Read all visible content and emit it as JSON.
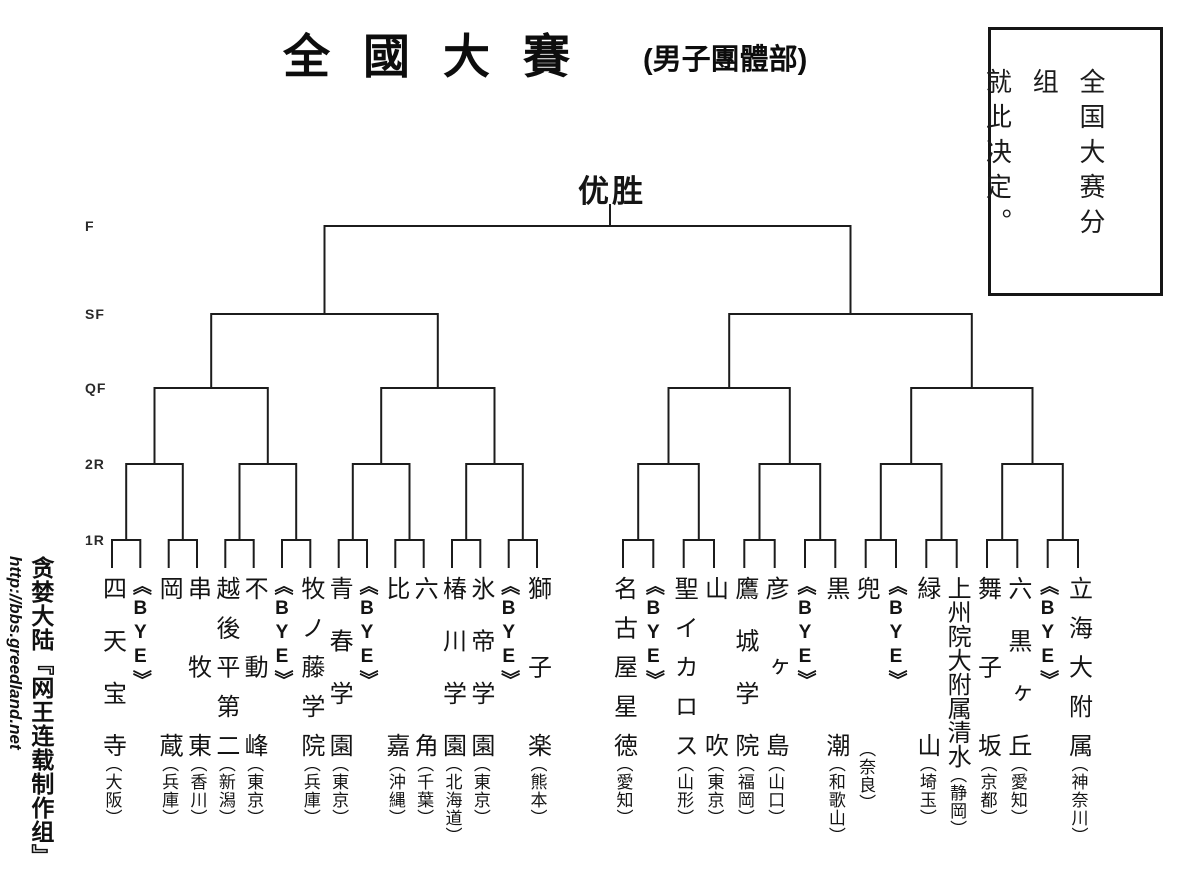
{
  "title": {
    "main": "全國大賽",
    "division": "(男子團體部)"
  },
  "champion_label": "优胜",
  "round_labels": [
    "F",
    "SF",
    "QF",
    "2R",
    "1R"
  ],
  "note_box": {
    "lines": [
      "全国大赛分组",
      "就此决定。"
    ]
  },
  "watermark": {
    "group": "贪婪大陆『网王连载制作组』",
    "url": "http://bbs.greedland.net"
  },
  "colors": {
    "line": "#1c1c1c",
    "text": "#151515",
    "background": "#ffffff"
  },
  "bracket": {
    "teams": [
      {
        "slot": 1,
        "name": "四天宝寺",
        "region": "（大阪）"
      },
      {
        "slot": 2,
        "name": "《BYE》",
        "bye": true
      },
      {
        "slot": 3,
        "name": "岡蔵",
        "region": "（兵庫）"
      },
      {
        "slot": 4,
        "name": "串牧東",
        "region": "（香川）"
      },
      {
        "slot": 5,
        "name": "越後平第二",
        "region": "（新潟）"
      },
      {
        "slot": 6,
        "name": "不動峰",
        "region": "（東京）"
      },
      {
        "slot": 7,
        "name": "《BYE》",
        "bye": true
      },
      {
        "slot": 8,
        "name": "牧ノ藤学院",
        "region": "（兵庫）"
      },
      {
        "slot": 9,
        "name": "青春学園",
        "region": "（東京）"
      },
      {
        "slot": 10,
        "name": "《BYE》",
        "bye": true
      },
      {
        "slot": 11,
        "name": "比嘉",
        "region": "（沖縄）"
      },
      {
        "slot": 12,
        "name": "六角",
        "region": "（千葉）"
      },
      {
        "slot": 13,
        "name": "椿川学園",
        "region": "（北海道）"
      },
      {
        "slot": 14,
        "name": "氷帝学園",
        "region": "（東京）"
      },
      {
        "slot": 15,
        "name": "《BYE》",
        "bye": true
      },
      {
        "slot": 16,
        "name": "獅子楽",
        "region": "（熊本）"
      },
      {
        "slot": 17,
        "name": "名古屋星徳",
        "region": "（愛知）"
      },
      {
        "slot": 18,
        "name": "《BYE》",
        "bye": true
      },
      {
        "slot": 19,
        "name": "聖イカロス",
        "region": "（山形）"
      },
      {
        "slot": 20,
        "name": "山吹",
        "region": "（東京）"
      },
      {
        "slot": 21,
        "name": "鷹城学院",
        "region": "（福岡）"
      },
      {
        "slot": 22,
        "name": "彦ヶ島",
        "region": "（山口）"
      },
      {
        "slot": 23,
        "name": "《BYE》",
        "bye": true
      },
      {
        "slot": 24,
        "name": "黒潮",
        "region": "（和歌山）"
      },
      {
        "slot": 25,
        "name": "兜",
        "region": "（奈良）"
      },
      {
        "slot": 26,
        "name": "《BYE》",
        "bye": true
      },
      {
        "slot": 27,
        "name": "緑山",
        "region": "（埼玉）"
      },
      {
        "slot": 28,
        "name": "上州院大附属清水",
        "region": "（静岡）"
      },
      {
        "slot": 29,
        "name": "舞子坂",
        "region": "（京都）"
      },
      {
        "slot": 30,
        "name": "六黒ヶ丘",
        "region": "（愛知）"
      },
      {
        "slot": 31,
        "name": "《BYE》",
        "bye": true
      },
      {
        "slot": 32,
        "name": "立海大附属",
        "region": "（神奈川）"
      }
    ]
  }
}
